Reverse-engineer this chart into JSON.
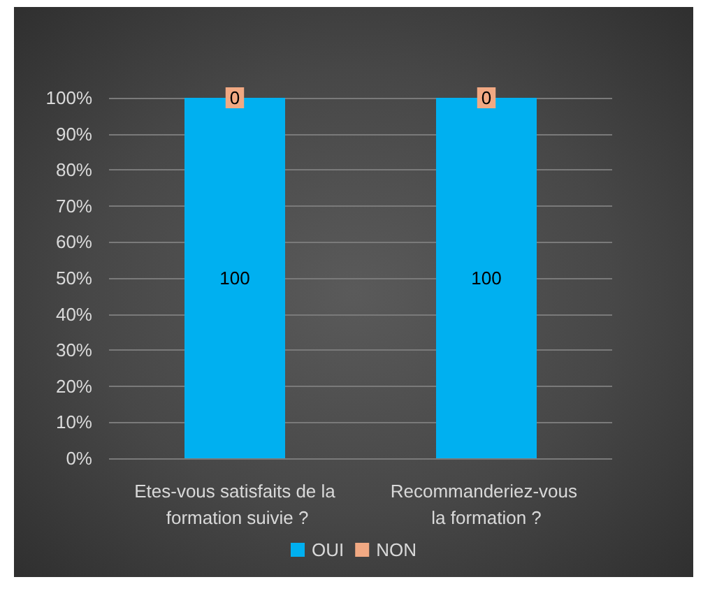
{
  "chart_data": {
    "type": "bar",
    "stacked": true,
    "categories": [
      "Etes-vous satisfaits de la formation suivie ?",
      "Recommanderiez-vous la formation ?"
    ],
    "series": [
      {
        "name": "OUI",
        "color": "#00b0f0",
        "values": [
          100,
          100
        ]
      },
      {
        "name": "NON",
        "color": "#f1a983",
        "values": [
          0,
          0
        ]
      }
    ],
    "ylim": [
      0,
      100
    ],
    "yticks": [
      {
        "value": 0,
        "label": "0%"
      },
      {
        "value": 10,
        "label": "10%"
      },
      {
        "value": 20,
        "label": "20%"
      },
      {
        "value": 30,
        "label": "30%"
      },
      {
        "value": 40,
        "label": "40%"
      },
      {
        "value": 50,
        "label": "50%"
      },
      {
        "value": 60,
        "label": "60%"
      },
      {
        "value": 70,
        "label": "70%"
      },
      {
        "value": 80,
        "label": "80%"
      },
      {
        "value": 90,
        "label": "90%"
      },
      {
        "value": 100,
        "label": "100%"
      }
    ],
    "grid": true,
    "data_labels": true,
    "legend": "bottom"
  }
}
